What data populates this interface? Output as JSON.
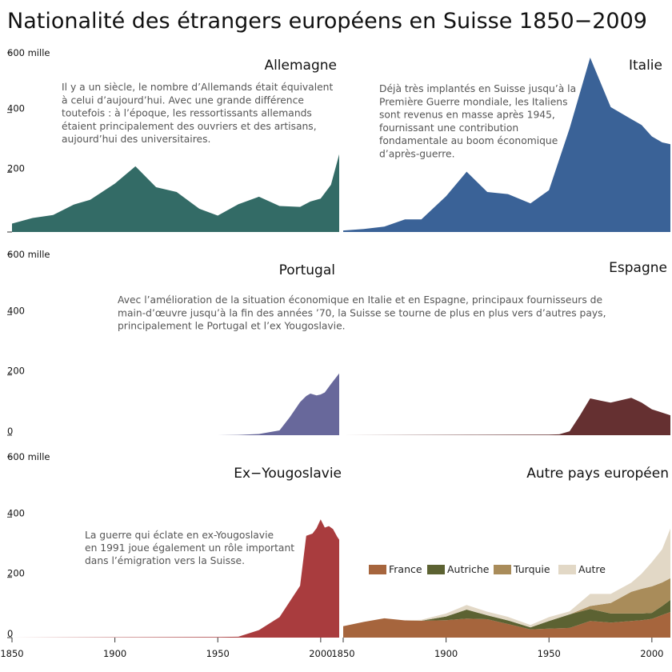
{
  "chart_data": {
    "type": "area",
    "title": "Nationalité des étrangers européens en Suisse 1850−2009",
    "xlim": [
      1850,
      2009
    ],
    "ylim": [
      0,
      600
    ],
    "y_unit_label": "600 mille",
    "y_ticks": [
      0,
      200,
      400
    ],
    "x_ticks": [
      "1850",
      "1900",
      "1950",
      "2000"
    ],
    "panels": [
      {
        "name": "Allemagne",
        "color": "#336b66",
        "note": [
          "Il y a un siècle, le nombre d’Allemands était équivalent",
          "à celui d’aujourd’hui. Avec une grande différence",
          "toutefois : à l’époque, les ressortissants allemands",
          "étaient principalement des ouvriers et des artisans,",
          "aujourd’hui des universitaires."
        ],
        "x": [
          1850,
          1860,
          1870,
          1880,
          1888,
          1900,
          1910,
          1920,
          1930,
          1941,
          1950,
          1960,
          1970,
          1980,
          1990,
          1995,
          2000,
          2005,
          2009
        ],
        "values": [
          28,
          47,
          57,
          92,
          108,
          162,
          220,
          150,
          134,
          78,
          55,
          93,
          118,
          87,
          84,
          102,
          112,
          158,
          260
        ]
      },
      {
        "name": "Italie",
        "color": "#3a6297",
        "note": [
          "Déjà très implantés en Suisse jusqu’à la",
          "Première Guerre mondiale, les Italiens",
          "sont revenus en masse après 1945,",
          "fournissant une contribution",
          "fondamentale au boom économique",
          "d’après-guerre."
        ],
        "x": [
          1850,
          1860,
          1870,
          1880,
          1888,
          1900,
          1910,
          1920,
          1930,
          1941,
          1950,
          1960,
          1970,
          1980,
          1990,
          1995,
          2000,
          2005,
          2009
        ],
        "values": [
          5,
          10,
          18,
          42,
          42,
          120,
          202,
          134,
          127,
          96,
          140,
          347,
          584,
          418,
          378,
          358,
          320,
          300,
          294
        ]
      },
      {
        "name": "Portugal",
        "color": "#68689b",
        "note": [
          "Avec l’amélioration de la situation économique en Italie et en Espagne, principaux fournisseurs de",
          "main-d’œuvre jusqu’à la fin des années ’70, la Suisse se tourne de plus en plus vers d’autres pays,",
          "principalement le Portugal et  l’ex Yougoslavie."
        ],
        "x": [
          1850,
          1950,
          1960,
          1970,
          1980,
          1985,
          1990,
          1993,
          1995,
          1998,
          2000,
          2002,
          2005,
          2009
        ],
        "values": [
          0,
          0,
          1,
          4,
          16,
          60,
          110,
          130,
          138,
          132,
          135,
          142,
          170,
          205
        ]
      },
      {
        "name": "Espagne",
        "color": "#653031",
        "note": [],
        "x": [
          1850,
          1950,
          1955,
          1960,
          1965,
          1970,
          1975,
          1980,
          1985,
          1990,
          1995,
          2000,
          2005,
          2009
        ],
        "values": [
          0,
          2,
          3,
          13,
          65,
          122,
          115,
          108,
          116,
          124,
          108,
          86,
          75,
          66
        ]
      },
      {
        "name": "Ex−Yougoslavie",
        "color": "#a93c3e",
        "note": [
          "La guerre qui éclate en ex-Yougoslavie",
          "en 1991 joue également un rôle important",
          "dans l’émigration vers la Suisse."
        ],
        "x": [
          1850,
          1950,
          1960,
          1970,
          1980,
          1990,
          1993,
          1996,
          1998,
          2000,
          2002,
          2004,
          2006,
          2008,
          2009
        ],
        "values": [
          0,
          2,
          3,
          25,
          68,
          172,
          338,
          345,
          363,
          392,
          365,
          370,
          360,
          335,
          325
        ]
      },
      {
        "name": "Autre pays européen",
        "stacked": true,
        "x": [
          1850,
          1860,
          1870,
          1880,
          1888,
          1900,
          1910,
          1920,
          1930,
          1941,
          1950,
          1960,
          1970,
          1980,
          1990,
          1995,
          2000,
          2005,
          2009
        ],
        "series": [
          {
            "name": "France",
            "color": "#a6653d",
            "values": [
              38,
              52,
              64,
              57,
              56,
              58,
              63,
              61,
              45,
              27,
              30,
              32,
              55,
              50,
              55,
              58,
              62,
              75,
              85
            ]
          },
          {
            "name": "Autriche",
            "color": "#5c6232",
            "values": [
              0,
              0,
              0,
              0,
              0,
              12,
              30,
              13,
              12,
              7,
              25,
              45,
              40,
              30,
              25,
              22,
              20,
              30,
              40
            ]
          },
          {
            "name": "Turquie",
            "color": "#a98c5a",
            "values": [
              0,
              0,
              0,
              0,
              0,
              0,
              0,
              0,
              0,
              0,
              0,
              0,
              10,
              35,
              72,
              82,
              88,
              78,
              72
            ]
          },
          {
            "name": "Autre",
            "color": "#e2d8c6",
            "values": [
              0,
              0,
              0,
              0,
              3,
              10,
              15,
              12,
              12,
              8,
              13,
              10,
              40,
              30,
              30,
              50,
              80,
              110,
              165
            ]
          }
        ]
      }
    ]
  }
}
